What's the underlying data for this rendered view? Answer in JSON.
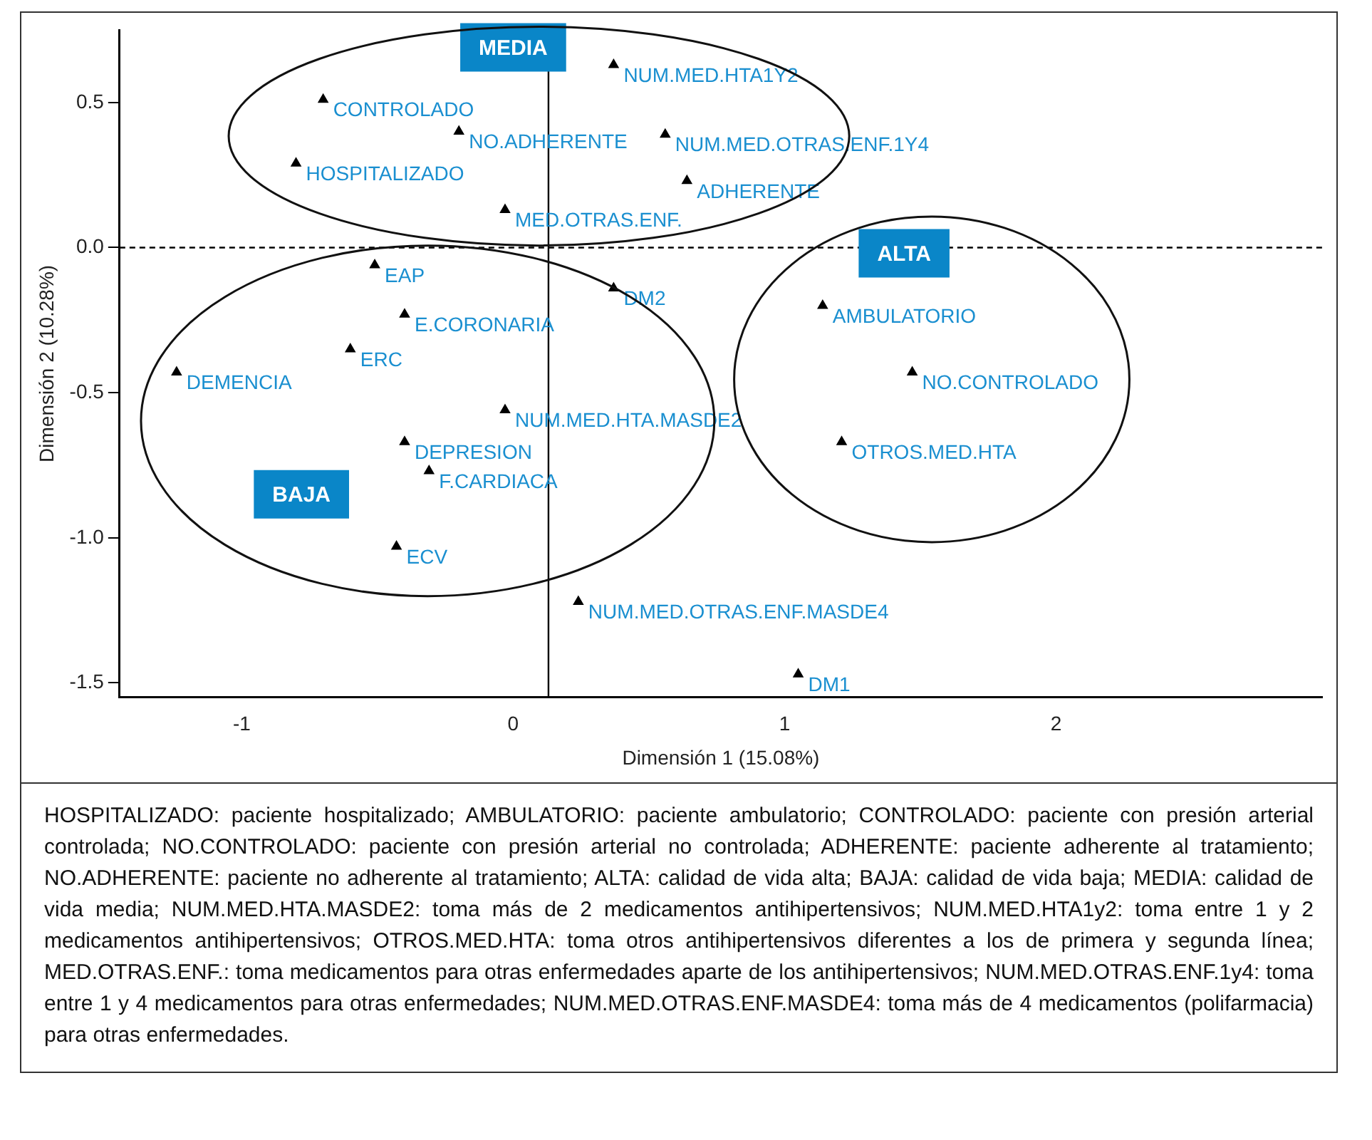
{
  "chart_data": {
    "type": "scatter",
    "xlabel": "Dimensión 1 (15.08%)",
    "ylabel": "Dimensión 2 (10.28%)",
    "xlim": [
      -1.45,
      2.98
    ],
    "xticks": [
      -1,
      0,
      1,
      2
    ],
    "ylim": [
      -1.55,
      0.75
    ],
    "yticks": [
      {
        "value": -1.5,
        "label": "-1.5"
      },
      {
        "value": -1,
        "label": "-1.0"
      },
      {
        "value": -0.5,
        "label": "-0.5"
      },
      {
        "value": 0,
        "label": "0.0"
      },
      {
        "value": 0.5,
        "label": "0.5"
      }
    ],
    "grid": false,
    "legend": false,
    "marker": "triangle",
    "series": [
      {
        "name": "CONTROLADO",
        "color": "#000000",
        "x": [
          -0.7
        ],
        "values": [
          0.51
        ]
      },
      {
        "name": "NO.ADHERENTE",
        "color": "#000000",
        "x": [
          -0.2
        ],
        "values": [
          0.4
        ]
      },
      {
        "name": "NUM.MED.OTRAS.ENF.1Y4",
        "color": "#000000",
        "x": [
          0.56
        ],
        "values": [
          0.39
        ]
      },
      {
        "name": "HOSPITALIZADO",
        "color": "#000000",
        "x": [
          -0.8
        ],
        "values": [
          0.29
        ]
      },
      {
        "name": "MED.OTRAS.ENF.",
        "color": "#000000",
        "x": [
          -0.03
        ],
        "values": [
          0.13
        ]
      },
      {
        "name": "NUM.MED.HTA1Y2",
        "color": "#000000",
        "x": [
          0.37
        ],
        "values": [
          0.63
        ]
      },
      {
        "name": "ADHERENTE",
        "color": "#000000",
        "x": [
          0.64
        ],
        "values": [
          0.23
        ]
      },
      {
        "name": "EAP",
        "color": "#000000",
        "x": [
          -0.51
        ],
        "values": [
          -0.06
        ]
      },
      {
        "name": "E.CORONARIA",
        "color": "#000000",
        "x": [
          -0.4
        ],
        "values": [
          -0.23
        ]
      },
      {
        "name": "ERC",
        "color": "#000000",
        "x": [
          -0.6
        ],
        "values": [
          -0.35
        ]
      },
      {
        "name": "DEMENCIA",
        "color": "#000000",
        "x": [
          -1.24
        ],
        "values": [
          -0.43
        ]
      },
      {
        "name": "DM2",
        "color": "#000000",
        "x": [
          0.37
        ],
        "values": [
          -0.14
        ]
      },
      {
        "name": "AMBULATORIO",
        "color": "#000000",
        "x": [
          1.14
        ],
        "values": [
          -0.2
        ]
      },
      {
        "name": "NO.CONTROLADO",
        "color": "#000000",
        "x": [
          1.47
        ],
        "values": [
          -0.43
        ]
      },
      {
        "name": "OTROS.MED.HTA",
        "color": "#000000",
        "x": [
          1.21
        ],
        "values": [
          -0.67
        ]
      },
      {
        "name": "NUM.MED.HTA.MASDE2",
        "color": "#000000",
        "x": [
          -0.03
        ],
        "values": [
          -0.56
        ]
      },
      {
        "name": "DEPRESION",
        "color": "#000000",
        "x": [
          -0.4
        ],
        "values": [
          -0.67
        ]
      },
      {
        "name": "F.CARDIACA",
        "color": "#000000",
        "x": [
          -0.31
        ],
        "values": [
          -0.77
        ]
      },
      {
        "name": "ECV",
        "color": "#000000",
        "x": [
          -0.43
        ],
        "values": [
          -1.03
        ]
      },
      {
        "name": "NUM.MED.OTRAS.ENF.MASDE4",
        "color": "#000000",
        "x": [
          0.24
        ],
        "values": [
          -1.22
        ]
      },
      {
        "name": "DM1",
        "color": "#000000",
        "x": [
          1.05
        ],
        "values": [
          -1.47
        ]
      }
    ],
    "ref_lines": [
      {
        "axis": "y",
        "value": 0,
        "line_style": "dashed",
        "color": "#000000"
      },
      {
        "axis": "x",
        "value": 0.13,
        "line_style": "solid",
        "color": "#000000"
      }
    ],
    "annotations": [
      "MEDIA",
      "ALTA",
      "BAJA",
      "HOSPITALIZADO: paciente hospitalizado; AMBULATORIO: paciente ambulatorio; CONTROLADO: paciente con presión arterial controlada; NO.CONTROLADO: paciente con presión arterial no controlada; ADHERENTE: paciente adherente al tratamiento; NO.ADHERENTE: paciente no adherente al tratamiento; ALTA: calidad de vida alta; BAJA: calidad de vida baja; MEDIA: calidad de vida media; NUM.MED.HTA.MASDE2: toma más de 2 medicamentos antihipertensivos; NUM.MED.HTA1y2: toma entre 1 y 2 medicamentos antihipertensivos; OTROS.MED.HTA: toma otros antihipertensivos diferentes a los de primera y segunda línea; MED.OTRAS.ENF.: toma medicamentos para otras enfermedades aparte de los antihipertensivos; NUM.MED.OTRAS.ENF.1y4: toma entre 1 y 4 medicamentos para otras enfermedades; NUM.MED.OTRAS.ENF.MASDE4: toma más de 4 medicamentos (polifarmacia) para otras enfermedades."
    ]
  }
}
